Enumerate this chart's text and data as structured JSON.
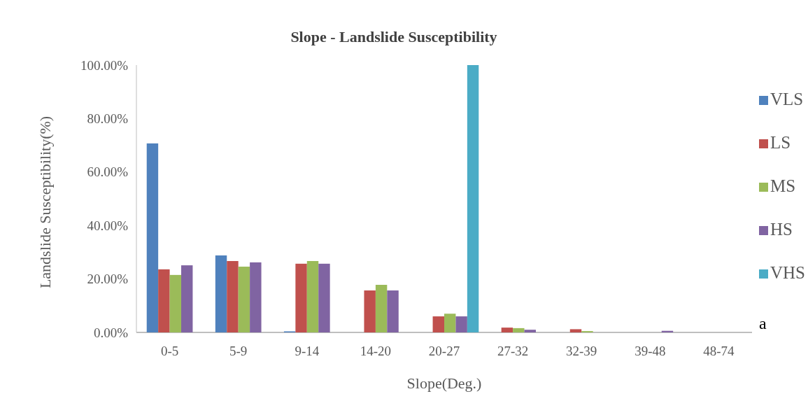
{
  "chart_data": {
    "type": "bar",
    "title": "Slope - Landslide Susceptibility",
    "xlabel": "Slope(Deg.)",
    "ylabel": "Landslide Susceptibility(%)",
    "categories": [
      "0-5",
      "5-9",
      "9-14",
      "14-20",
      "20-27",
      "27-32",
      "32-39",
      "39-48",
      "48-74"
    ],
    "series": [
      {
        "name": "VLS",
        "color": "#4f81bd",
        "values": [
          70.7,
          28.8,
          0.4,
          0,
          0,
          0,
          0,
          0,
          0
        ]
      },
      {
        "name": "LS",
        "color": "#c0504d",
        "values": [
          23.6,
          26.7,
          25.7,
          15.7,
          6,
          1.8,
          1.2,
          0,
          0
        ]
      },
      {
        "name": "MS",
        "color": "#9bbb59",
        "values": [
          21.5,
          24.6,
          26.7,
          17.8,
          7,
          1.6,
          0.5,
          0,
          0
        ]
      },
      {
        "name": "HS",
        "color": "#8064a2",
        "values": [
          25.1,
          26.2,
          25.7,
          15.7,
          6,
          1,
          0,
          0.6,
          0
        ]
      },
      {
        "name": "VHS",
        "color": "#4bacc6",
        "values": [
          0,
          0,
          0,
          0,
          100,
          0,
          0,
          0,
          0
        ]
      }
    ],
    "ylim": [
      0,
      100
    ],
    "yticks": [
      {
        "value": 0,
        "label": "0.00%"
      },
      {
        "value": 20,
        "label": "20.00%"
      },
      {
        "value": 40,
        "label": "40.00%"
      },
      {
        "value": 60,
        "label": "60.00%"
      },
      {
        "value": 80,
        "label": "80.00%"
      },
      {
        "value": 100,
        "label": "100.00%"
      }
    ],
    "grid": false,
    "legend": "right",
    "annotations": [
      "a"
    ]
  }
}
